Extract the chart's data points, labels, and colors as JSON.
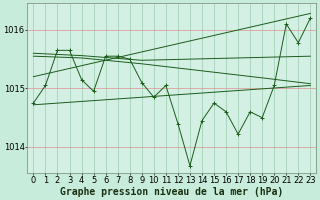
{
  "background_color": "#c8ecdc",
  "plot_bg_color": "#d4f0e4",
  "grid_color_v": "#90c4a8",
  "grid_color_h": "#e09090",
  "line_color": "#1a5c1a",
  "xlabel": "Graphe pression niveau de la mer (hPa)",
  "xlim": [
    -0.5,
    23.5
  ],
  "ylim": [
    1013.55,
    1016.45
  ],
  "yticks": [
    1014,
    1015,
    1016
  ],
  "ytick_labels": [
    "1014",
    "1015",
    "1016"
  ],
  "xticks": [
    0,
    1,
    2,
    3,
    4,
    5,
    6,
    7,
    8,
    9,
    10,
    11,
    12,
    13,
    14,
    15,
    16,
    17,
    18,
    19,
    20,
    21,
    22,
    23
  ],
  "main_line": {
    "x": [
      0,
      1,
      2,
      3,
      4,
      5,
      6,
      7,
      8,
      9,
      10,
      11,
      12,
      13,
      14,
      15,
      16,
      17,
      18,
      19,
      20,
      21,
      22,
      23
    ],
    "y": [
      1014.75,
      1015.05,
      1015.65,
      1015.65,
      1015.15,
      1014.95,
      1015.55,
      1015.55,
      1015.5,
      1015.1,
      1014.85,
      1015.05,
      1014.4,
      1013.68,
      1014.45,
      1014.75,
      1014.6,
      1014.22,
      1014.6,
      1014.5,
      1015.05,
      1016.1,
      1015.78,
      1016.2
    ]
  },
  "envelope_upper": {
    "x": [
      0,
      23
    ],
    "y": [
      1015.2,
      1016.28
    ]
  },
  "envelope_lower": {
    "x": [
      0,
      23
    ],
    "y": [
      1014.72,
      1015.05
    ]
  },
  "smooth_line1": {
    "x": [
      0,
      4,
      9,
      14,
      19,
      23
    ],
    "y": [
      1015.55,
      1015.52,
      1015.42,
      1015.3,
      1015.18,
      1015.08
    ]
  },
  "smooth_line2": {
    "x": [
      0,
      4,
      9,
      23
    ],
    "y": [
      1015.6,
      1015.56,
      1015.48,
      1015.55
    ]
  },
  "title_fontsize": 7,
  "tick_fontsize": 6
}
